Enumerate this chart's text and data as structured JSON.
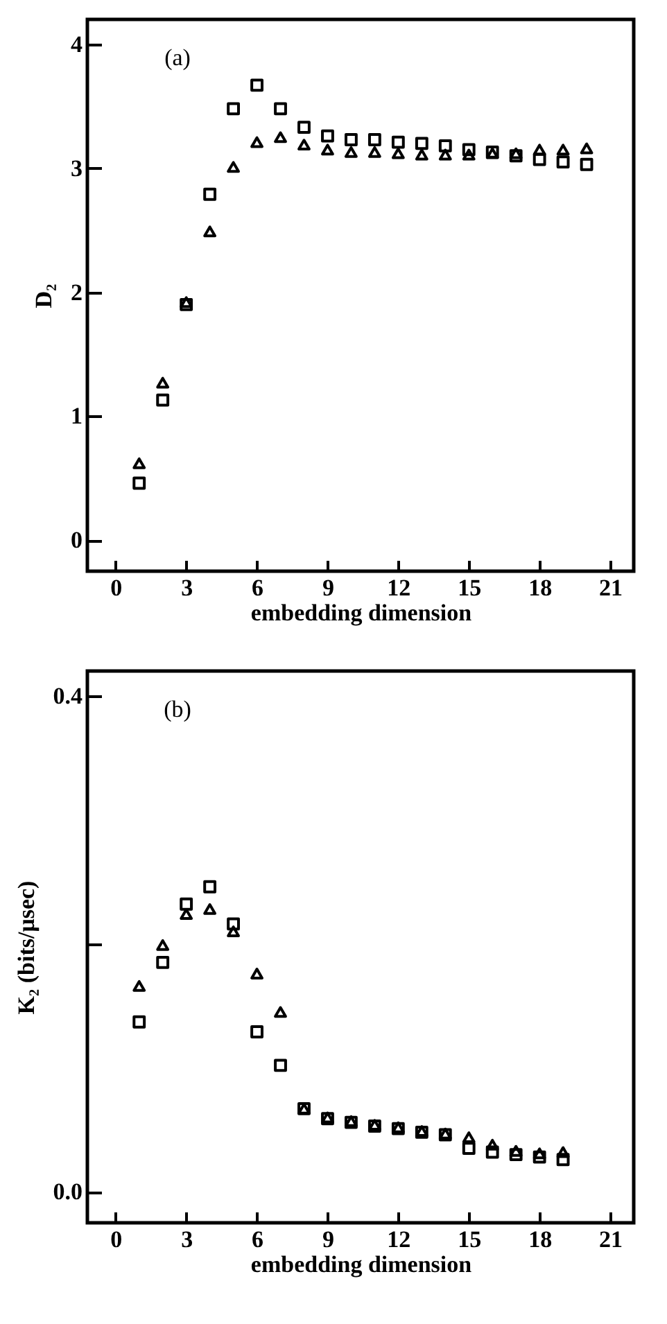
{
  "chart_data": [
    {
      "type": "scatter",
      "xlabel": "embedding dimension",
      "ylabel": "D₂",
      "annotations": [
        "(a)"
      ],
      "xlim": [
        -1.2,
        22
      ],
      "xticks": [
        0,
        3,
        6,
        9,
        12,
        15,
        18,
        21
      ],
      "ylim": [
        -0.25,
        4.2
      ],
      "yticks": [
        0,
        1,
        2,
        3,
        4
      ],
      "grid": false,
      "legend": false,
      "x": [
        1,
        2,
        3,
        4,
        5,
        6,
        7,
        8,
        9,
        10,
        11,
        12,
        13,
        14,
        15,
        16,
        17,
        18,
        19,
        20
      ],
      "series": [
        {
          "color": "#000000",
          "marker": "square",
          "values": [
            0.46,
            1.13,
            1.9,
            2.79,
            3.48,
            3.67,
            3.48,
            3.33,
            3.26,
            3.23,
            3.23,
            3.21,
            3.2,
            3.18,
            3.15,
            3.13,
            3.1,
            3.07,
            3.05,
            3.03
          ]
        },
        {
          "color": "#000000",
          "marker": "triangle",
          "values": [
            0.62,
            1.27,
            1.92,
            2.49,
            3.01,
            3.21,
            3.25,
            3.19,
            3.15,
            3.13,
            3.13,
            3.12,
            3.11,
            3.11,
            3.11,
            3.12,
            3.12,
            3.15,
            3.15,
            3.16
          ]
        }
      ]
    },
    {
      "type": "scatter",
      "xlabel": "embedding dimension",
      "ylabel": "K₂ (bits/μsec)",
      "annotations": [
        "(b)"
      ],
      "xlim": [
        -1.2,
        22
      ],
      "xticks": [
        0,
        3,
        6,
        9,
        12,
        15,
        18,
        21
      ],
      "ylim": [
        -0.025,
        0.42
      ],
      "yticks": [
        {
          "value": 0,
          "label": "0.0"
        },
        {
          "value": 0.2,
          "label": null
        },
        {
          "value": 0.4,
          "label": "0.4"
        }
      ],
      "grid": false,
      "legend": false,
      "x": [
        1,
        2,
        3,
        4,
        5,
        6,
        7,
        8,
        9,
        10,
        11,
        12,
        13,
        14,
        15,
        16,
        17,
        18,
        19
      ],
      "series": [
        {
          "color": "#000000",
          "marker": "square",
          "values": [
            0.137,
            0.185,
            0.232,
            0.246,
            0.216,
            0.129,
            0.102,
            0.067,
            0.059,
            0.056,
            0.053,
            0.051,
            0.048,
            0.046,
            0.035,
            0.032,
            0.03,
            0.028,
            0.026
          ]
        },
        {
          "color": "#000000",
          "marker": "triangle",
          "values": [
            0.166,
            0.199,
            0.224,
            0.228,
            0.21,
            0.176,
            0.145,
            0.067,
            0.06,
            0.057,
            0.054,
            0.052,
            0.049,
            0.047,
            0.044,
            0.038,
            0.033,
            0.031,
            0.032
          ]
        }
      ]
    }
  ]
}
